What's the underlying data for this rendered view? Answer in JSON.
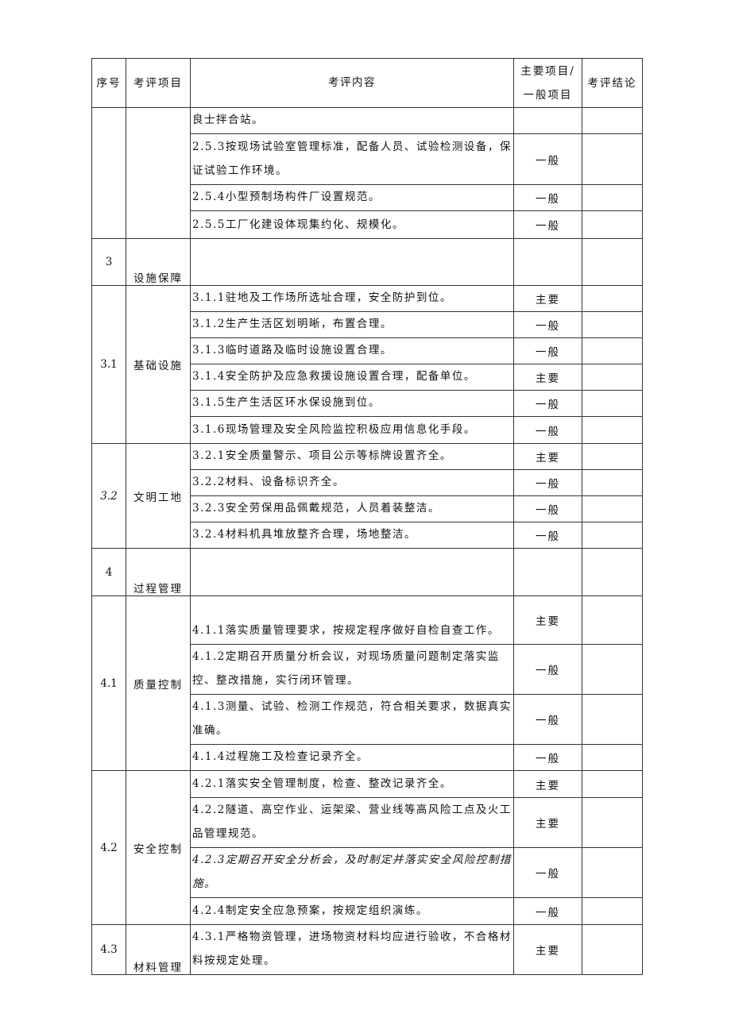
{
  "header": {
    "num": "序号",
    "category": "考评项目",
    "content": "考评内容",
    "level": "主要项目/一般项目",
    "conclusion": "考评结论"
  },
  "groups": [
    {
      "num": "",
      "category": "",
      "items": [
        {
          "text": "良士拌合站。",
          "level": ""
        },
        {
          "text": "2.5.3按现场试验室管理标准，配备人员、试验检测设备，保证试验工作环境。",
          "level": "一般"
        },
        {
          "text": "2.5.4小型预制场构件厂设置规范。",
          "level": "一般"
        },
        {
          "text": "2.5.5工厂化建设体现集约化、规模化。",
          "level": "一般"
        }
      ]
    },
    {
      "num": "3",
      "category": "设施保障",
      "items": [
        {
          "text": "",
          "level": ""
        }
      ]
    },
    {
      "num": "3.1",
      "category": "基础设施",
      "items": [
        {
          "text": "3.1.1驻地及工作场所选址合理，安全防护到位。",
          "level": "主要"
        },
        {
          "text": "3.1.2生产生活区划明晰，布置合理。",
          "level": "一般"
        },
        {
          "text": "3.1.3临时道路及临时设施设置合理。",
          "level": "一般"
        },
        {
          "text": "3.1.4安全防护及应急救援设施设置合理，配备单位。",
          "level": "主要"
        },
        {
          "text": "3.1.5生产生活区环水保设施到位。",
          "level": "一般"
        },
        {
          "text": "3.1.6现场管理及安全风险监控积极应用信息化手段。",
          "level": "一般"
        }
      ]
    },
    {
      "num": "3.2",
      "category": "文明工地",
      "items": [
        {
          "text": "3.2.1安全质量警示、项目公示等标牌设置齐全。",
          "level": "主要"
        },
        {
          "text": "3.2.2材料、设备标识齐全。",
          "level": "一般"
        },
        {
          "text": "3.2.3安全劳保用品佩戴规范，人员着装整洁。",
          "level": "一般"
        },
        {
          "text": "3.2.4材料机具堆放整齐合理，场地整洁。",
          "level": "一般"
        }
      ]
    },
    {
      "num": "4",
      "category": "过程管理",
      "items": [
        {
          "text": "",
          "level": ""
        }
      ]
    },
    {
      "num": "4.1",
      "category": "质量控制",
      "items": [
        {
          "text": "4.1.1落实质量管理要求，按规定程序做好自检自查工作。",
          "level": "主要"
        },
        {
          "text": "4.1.2定期召开质量分析会议，对现场质量问题制定落实监控、整改措施，实行闭环管理。",
          "level": "一般"
        },
        {
          "text": "4.1.3测量、试验、检测工作规范，符合相关要求，数据真实准确。",
          "level": "一般"
        },
        {
          "text": "4.1.4过程施工及检查记录齐全。",
          "level": "一般"
        }
      ]
    },
    {
      "num": "4.2",
      "category": "安全控制",
      "items": [
        {
          "text": "4.2.1落实安全管理制度，检查、整改记录齐全。",
          "level": "主要"
        },
        {
          "text": "4.2.2隧道、高空作业、运架梁、营业线等高风险工点及火工品管理规范。",
          "level": "主要"
        },
        {
          "text": "4.2.3定期召开安全分析会，及时制定并落实安全风险控制措施。",
          "level": "一般"
        },
        {
          "text": "4.2.4制定安全应急预案，按规定组织演练。",
          "level": "一般"
        }
      ]
    },
    {
      "num": "4.3",
      "category": "材料管理",
      "items": [
        {
          "text": "4.3.1严格物资管理，进场物资材料均应进行验收，不合格材料按规定处理。",
          "level": "主要"
        }
      ]
    }
  ]
}
